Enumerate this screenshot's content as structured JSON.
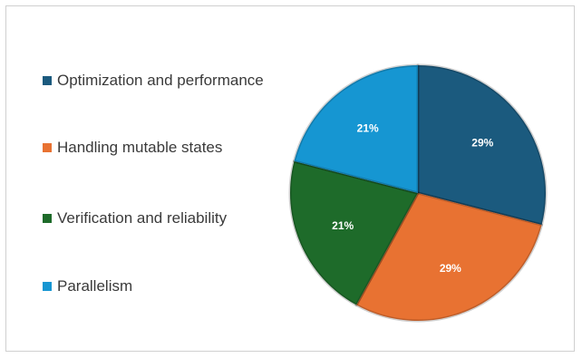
{
  "chart_data": {
    "type": "pie",
    "title": "",
    "legend_position": "left",
    "slices": [
      {
        "label": "Optimization and performance",
        "value": 29,
        "display": "29%",
        "color": "#1b5a7e"
      },
      {
        "label": "Handling mutable states",
        "value": 29,
        "display": "29%",
        "color": "#e87232"
      },
      {
        "label": "Verification and reliability",
        "value": 21,
        "display": "21%",
        "color": "#1e6b2a"
      },
      {
        "label": "Parallelism",
        "value": 21,
        "display": "21%",
        "color": "#1696d2"
      }
    ]
  }
}
